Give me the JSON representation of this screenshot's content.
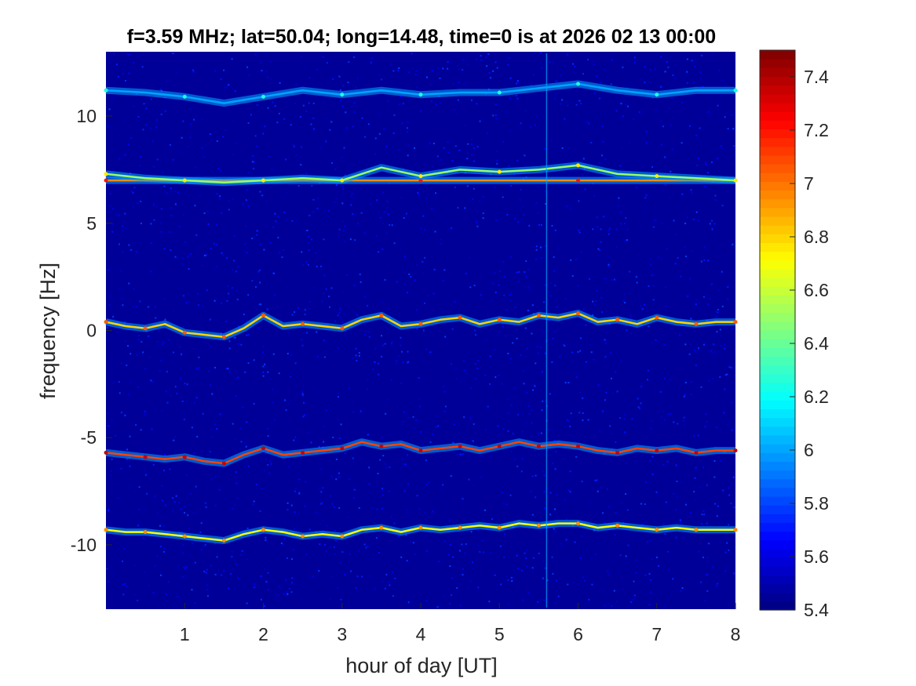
{
  "chart_data": {
    "type": "heatmap",
    "title": "f=3.59 MHz;  lat=50.04; long=14.48, time=0 is at 2026 02 13 00:00",
    "xlabel": "hour of day [UT]",
    "ylabel": "frequency [Hz]",
    "xlim": [
      0,
      8
    ],
    "ylim": [
      -13,
      13
    ],
    "x_ticks": [
      1,
      2,
      3,
      4,
      5,
      6,
      7,
      8
    ],
    "x_tick_labels": [
      "1",
      "2",
      "3",
      "4",
      "5",
      "6",
      "7",
      "8"
    ],
    "y_ticks": [
      -10,
      -5,
      0,
      5,
      10
    ],
    "y_tick_labels": [
      "-10",
      "-5",
      "0",
      "5",
      "10"
    ],
    "colorbar": {
      "limits": [
        5.4,
        7.5
      ],
      "ticks": [
        5.4,
        5.6,
        5.8,
        6,
        6.2,
        6.4,
        6.6,
        6.8,
        7,
        7.2,
        7.4
      ],
      "tick_labels": [
        "5.4",
        "5.6",
        "5.8",
        "6",
        "6.2",
        "6.4",
        "6.6",
        "6.8",
        "7",
        "7.2",
        "7.4"
      ],
      "colormap": "jet"
    },
    "background_level": 5.45,
    "traces": [
      {
        "x": [
          0.0,
          0.5,
          1.0,
          1.5,
          2.0,
          2.5,
          3.0,
          3.5,
          4.0,
          4.5,
          5.0,
          5.5,
          6.0,
          6.5,
          7.0,
          7.5,
          8.0
        ],
        "y": [
          11.2,
          11.1,
          10.9,
          10.6,
          10.9,
          11.2,
          11.0,
          11.2,
          11.0,
          11.1,
          11.1,
          11.3,
          11.5,
          11.2,
          11.0,
          11.2,
          11.2
        ],
        "level": 6.0
      },
      {
        "x": [
          0.0,
          1.0,
          2.0,
          3.0,
          4.0,
          5.0,
          6.0,
          7.0,
          8.0
        ],
        "y": [
          7.0,
          7.0,
          7.0,
          7.0,
          7.0,
          7.0,
          7.0,
          7.0,
          7.0
        ],
        "level": 6.95
      },
      {
        "x": [
          0.0,
          0.5,
          1.0,
          1.5,
          2.0,
          2.5,
          3.0,
          3.5,
          4.0,
          4.5,
          5.0,
          5.5,
          6.0,
          6.5,
          7.0,
          7.5,
          8.0
        ],
        "y": [
          7.3,
          7.1,
          7.0,
          6.9,
          7.0,
          7.1,
          7.0,
          7.6,
          7.2,
          7.5,
          7.4,
          7.5,
          7.7,
          7.3,
          7.2,
          7.1,
          7.0
        ],
        "level": 6.5
      },
      {
        "x": [
          0.0,
          0.25,
          0.5,
          0.75,
          1.0,
          1.25,
          1.5,
          1.75,
          2.0,
          2.25,
          2.5,
          2.75,
          3.0,
          3.25,
          3.5,
          3.75,
          4.0,
          4.25,
          4.5,
          4.75,
          5.0,
          5.25,
          5.5,
          5.75,
          6.0,
          6.25,
          6.5,
          6.75,
          7.0,
          7.25,
          7.5,
          7.75,
          8.0
        ],
        "y": [
          0.4,
          0.2,
          0.1,
          0.3,
          -0.1,
          -0.2,
          -0.3,
          0.1,
          0.7,
          0.2,
          0.3,
          0.2,
          0.1,
          0.5,
          0.7,
          0.2,
          0.3,
          0.5,
          0.6,
          0.3,
          0.5,
          0.4,
          0.7,
          0.6,
          0.8,
          0.4,
          0.5,
          0.3,
          0.6,
          0.4,
          0.3,
          0.4,
          0.4
        ],
        "level": 6.8
      },
      {
        "x": [
          0.0,
          0.25,
          0.5,
          0.75,
          1.0,
          1.25,
          1.5,
          1.75,
          2.0,
          2.25,
          2.5,
          2.75,
          3.0,
          3.25,
          3.5,
          3.75,
          4.0,
          4.25,
          4.5,
          4.75,
          5.0,
          5.25,
          5.5,
          5.75,
          6.0,
          6.25,
          6.5,
          6.75,
          7.0,
          7.25,
          7.5,
          7.75,
          8.0
        ],
        "y": [
          -5.7,
          -5.8,
          -5.9,
          -6.0,
          -5.9,
          -6.1,
          -6.2,
          -5.8,
          -5.5,
          -5.8,
          -5.7,
          -5.6,
          -5.5,
          -5.2,
          -5.4,
          -5.3,
          -5.6,
          -5.5,
          -5.4,
          -5.6,
          -5.4,
          -5.2,
          -5.4,
          -5.3,
          -5.4,
          -5.6,
          -5.7,
          -5.5,
          -5.6,
          -5.5,
          -5.7,
          -5.6,
          -5.6
        ],
        "level": 7.1
      },
      {
        "x": [
          0.0,
          0.25,
          0.5,
          0.75,
          1.0,
          1.25,
          1.5,
          1.75,
          2.0,
          2.25,
          2.5,
          2.75,
          3.0,
          3.25,
          3.5,
          3.75,
          4.0,
          4.25,
          4.5,
          4.75,
          5.0,
          5.25,
          5.5,
          5.75,
          6.0,
          6.25,
          6.5,
          6.75,
          7.0,
          7.25,
          7.5,
          7.75,
          8.0
        ],
        "y": [
          -9.3,
          -9.4,
          -9.4,
          -9.5,
          -9.6,
          -9.7,
          -9.8,
          -9.5,
          -9.3,
          -9.4,
          -9.6,
          -9.5,
          -9.6,
          -9.3,
          -9.2,
          -9.4,
          -9.2,
          -9.3,
          -9.2,
          -9.1,
          -9.2,
          -9.0,
          -9.1,
          -9.0,
          -9.0,
          -9.2,
          -9.1,
          -9.2,
          -9.3,
          -9.2,
          -9.3,
          -9.3,
          -9.3
        ],
        "level": 6.7
      }
    ],
    "vertical_artifact": {
      "x": 5.6,
      "level": 6.0
    }
  }
}
